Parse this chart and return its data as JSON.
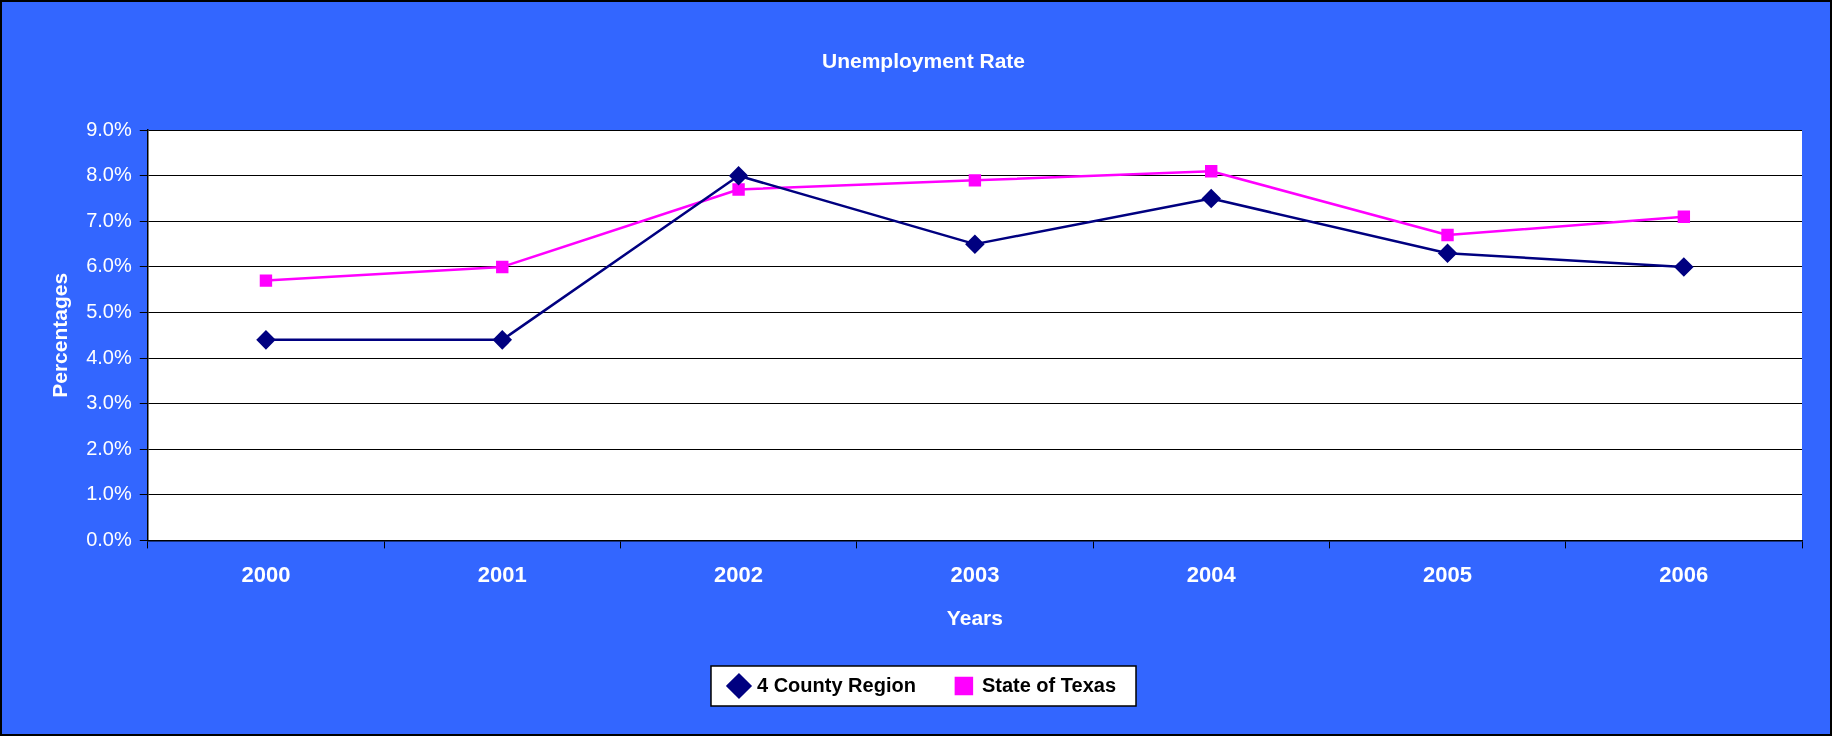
{
  "chart_data": {
    "type": "line",
    "title": "Unemployment Rate",
    "xlabel": "Years",
    "ylabel": "Percentages",
    "categories": [
      "2000",
      "2001",
      "2002",
      "2003",
      "2004",
      "2005",
      "2006"
    ],
    "series": [
      {
        "name": "4 County Region",
        "color": "#000080",
        "marker": "diamond",
        "values": [
          4.4,
          4.4,
          8.0,
          6.5,
          7.5,
          6.3,
          6.0
        ]
      },
      {
        "name": "State of Texas",
        "color": "#ff00ff",
        "marker": "square",
        "values": [
          5.7,
          6.0,
          7.7,
          7.9,
          8.1,
          6.7,
          7.1
        ]
      }
    ],
    "ylim": [
      0,
      9
    ],
    "yticks": [
      {
        "value": 0,
        "label": "0.0%"
      },
      {
        "value": 1,
        "label": "1.0%"
      },
      {
        "value": 2,
        "label": "2.0%"
      },
      {
        "value": 3,
        "label": "3.0%"
      },
      {
        "value": 4,
        "label": "4.0%"
      },
      {
        "value": 5,
        "label": "5.0%"
      },
      {
        "value": 6,
        "label": "6.0%"
      },
      {
        "value": 7,
        "label": "7.0%"
      },
      {
        "value": 8,
        "label": "8.0%"
      },
      {
        "value": 9,
        "label": "9.0%"
      }
    ],
    "grid": "y",
    "legend": "bottom",
    "line_style": "solid"
  }
}
